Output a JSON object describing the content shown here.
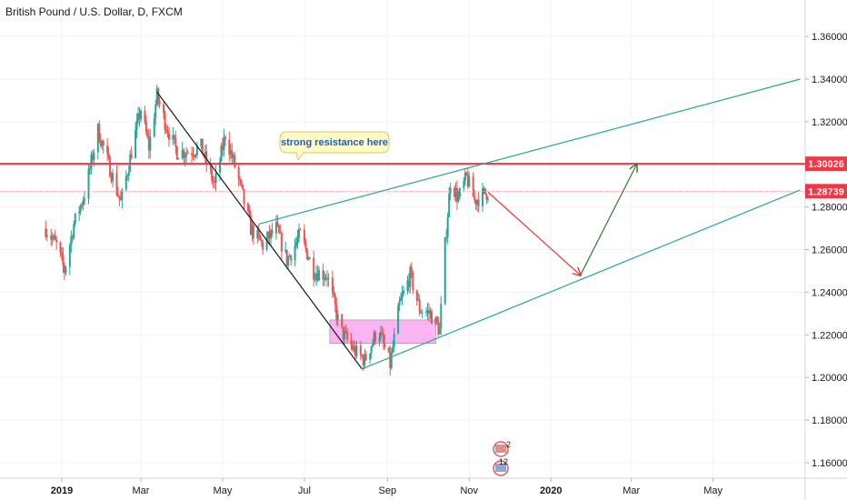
{
  "chart_data": {
    "type": "candlestick",
    "title": "British Pound / U.S. Dollar, D, FXCM",
    "y_axis": {
      "ticks": [
        "1.36000",
        "1.34000",
        "1.32000",
        "1.30000",
        "1.28000",
        "1.26000",
        "1.24000",
        "1.22000",
        "1.20000",
        "1.18000",
        "1.16000"
      ],
      "range": [
        1.15,
        1.37
      ]
    },
    "x_axis": {
      "ticks": [
        "2019",
        "Mar",
        "May",
        "Jul",
        "Sep",
        "Nov",
        "2020",
        "Mar",
        "May"
      ],
      "bold_ticks": [
        "2019",
        "2020"
      ]
    },
    "price_labels": [
      {
        "value": "1.30026",
        "color": "#f23645"
      },
      {
        "value": "1.28739",
        "color": "#f23645"
      }
    ],
    "annotations": {
      "callout": "strong resistance here",
      "event_badges": [
        "2",
        "12"
      ]
    },
    "ohlc_path": [
      [
        "2018-12-20",
        1.27
      ],
      [
        "2018-12-28",
        1.262
      ],
      [
        "2019-01-03",
        1.25
      ],
      [
        "2019-01-10",
        1.272
      ],
      [
        "2019-01-18",
        1.286
      ],
      [
        "2019-01-28",
        1.316
      ],
      [
        "2019-02-05",
        1.3
      ],
      [
        "2019-02-14",
        1.282
      ],
      [
        "2019-02-22",
        1.306
      ],
      [
        "2019-03-01",
        1.326
      ],
      [
        "2019-03-07",
        1.308
      ],
      [
        "2019-03-13",
        1.332
      ],
      [
        "2019-03-20",
        1.318
      ],
      [
        "2019-03-28",
        1.306
      ],
      [
        "2019-04-05",
        1.306
      ],
      [
        "2019-04-15",
        1.308
      ],
      [
        "2019-04-25",
        1.29
      ],
      [
        "2019-05-03",
        1.314
      ],
      [
        "2019-05-12",
        1.295
      ],
      [
        "2019-05-22",
        1.27
      ],
      [
        "2019-05-31",
        1.262
      ],
      [
        "2019-06-10",
        1.27
      ],
      [
        "2019-06-18",
        1.255
      ],
      [
        "2019-06-28",
        1.267
      ],
      [
        "2019-07-08",
        1.25
      ],
      [
        "2019-07-18",
        1.248
      ],
      [
        "2019-07-28",
        1.222
      ],
      [
        "2019-08-08",
        1.212
      ],
      [
        "2019-08-15",
        1.208
      ],
      [
        "2019-08-25",
        1.223
      ],
      [
        "2019-09-03",
        1.206
      ],
      [
        "2019-09-10",
        1.234
      ],
      [
        "2019-09-18",
        1.248
      ],
      [
        "2019-09-25",
        1.232
      ],
      [
        "2019-10-03",
        1.23
      ],
      [
        "2019-10-10",
        1.222
      ],
      [
        "2019-10-14",
        1.262
      ],
      [
        "2019-10-18",
        1.292
      ],
      [
        "2019-10-24",
        1.284
      ],
      [
        "2019-10-30",
        1.294
      ],
      [
        "2019-11-05",
        1.283
      ],
      [
        "2019-11-12",
        1.286
      ],
      [
        "2019-11-15",
        1.287
      ]
    ],
    "drawings": {
      "resistance_level": 1.30026,
      "support_zone": {
        "from": "2019-07-20",
        "to": "2019-10-07",
        "low": 1.216,
        "high": 1.227
      },
      "downtrend_line": [
        [
          "2019-03-13",
          1.334
        ],
        [
          "2019-08-13",
          1.204
        ]
      ],
      "lower_channel_line": [
        [
          "2019-08-13",
          1.204
        ],
        [
          "2020-07-05",
          1.288
        ]
      ],
      "upper_channel_line": [
        [
          "2019-05-28",
          1.272
        ],
        [
          "2020-07-05",
          1.34
        ]
      ],
      "projection_down": [
        [
          "2019-11-15",
          1.287
        ],
        [
          "2020-01-23",
          1.248
        ]
      ],
      "projection_up": [
        [
          "2020-01-23",
          1.248
        ],
        [
          "2020-03-05",
          1.3
        ]
      ]
    }
  }
}
